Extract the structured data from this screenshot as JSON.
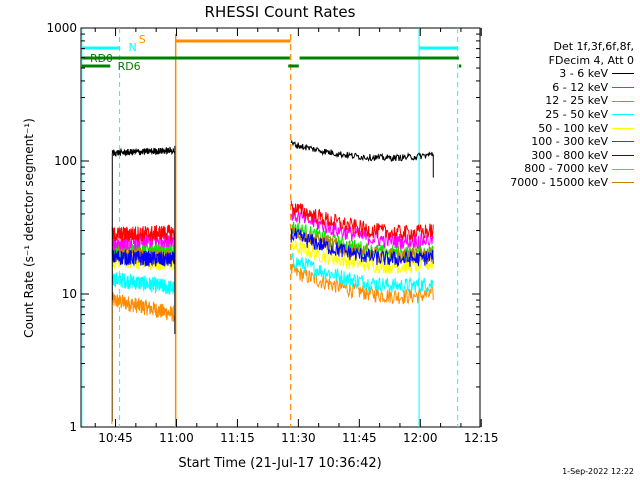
{
  "chart_data": {
    "type": "line",
    "title": "RHESSI Count Rates",
    "xlabel": "Start Time (21-Jul-17 10:36:42)",
    "ylabel": "Count Rate (s⁻¹ detector segment⁻¹)",
    "yscale": "log",
    "ylim": [
      1,
      1000
    ],
    "xlim_minutes": [
      -0.2,
      98.0
    ],
    "xticks": [
      "10:45",
      "11:00",
      "11:15",
      "11:30",
      "11:45",
      "12:00",
      "12:15"
    ],
    "xtick_minutes": [
      8.3,
      23.3,
      38.3,
      53.3,
      68.3,
      83.3,
      98.3
    ],
    "yticks": [
      "1",
      "10",
      "100",
      "1000"
    ],
    "ytick_values": [
      1,
      10,
      100,
      1000
    ],
    "grid": false,
    "legend_title": [
      "Det 1f,3f,6f,8f,",
      "FDecim 4, Att 0"
    ],
    "series": [
      {
        "name": "3 - 6 keV",
        "color": "#000000",
        "segments": [
          [
            7.5,
            22.8,
            115,
            120
          ],
          [
            51.5,
            86.5,
            135,
            112
          ]
        ]
      },
      {
        "name": "6 - 12 keV",
        "color": "#ff00ff",
        "segments": [
          [
            7.5,
            22.8,
            24,
            26
          ],
          [
            51.5,
            86.5,
            40,
            26
          ]
        ]
      },
      {
        "name": "12 - 25 keV",
        "color": "#00ee00",
        "segments": [
          [
            7.5,
            22.8,
            21,
            22
          ],
          [
            51.5,
            86.5,
            32,
            21
          ]
        ]
      },
      {
        "name": "25 - 50 keV",
        "color": "#00ffff",
        "segments": [
          [
            7.5,
            22.8,
            13,
            11
          ],
          [
            51.5,
            86.5,
            18,
            12
          ]
        ]
      },
      {
        "name": "50 - 100 keV",
        "color": "#ffff00",
        "segments": [
          [
            7.5,
            22.8,
            18,
            17
          ],
          [
            51.5,
            86.5,
            23,
            17
          ]
        ]
      },
      {
        "name": "100 - 300 keV",
        "color": "#ff0000",
        "segments": [
          [
            7.5,
            22.8,
            28,
            29
          ],
          [
            51.5,
            86.5,
            45,
            30
          ]
        ]
      },
      {
        "name": "300 - 800 keV",
        "color": "#0000ff",
        "segments": [
          [
            7.5,
            22.8,
            19,
            18
          ],
          [
            51.5,
            86.5,
            28,
            19
          ]
        ]
      },
      {
        "name": "800 - 7000 keV",
        "color": "#ff8c00",
        "segments": [
          [
            7.5,
            22.8,
            9,
            7
          ],
          [
            51.5,
            86.5,
            15,
            10
          ]
        ]
      },
      {
        "name": "7000 - 15000 keV",
        "color": "#c08000",
        "segments": [
          [
            7.5,
            22.8,
            20,
            19
          ],
          [
            51.5,
            86.5,
            30,
            20
          ]
        ]
      }
    ],
    "annotations": {
      "N": {
        "label": "N",
        "color": "#00ffff"
      },
      "S": {
        "label": "S",
        "color": "#ff8c00"
      },
      "RD0": {
        "label": "RD0",
        "color": "#008000"
      },
      "RD6": {
        "label": "RD6",
        "color": "#008000"
      }
    }
  },
  "datestamp": "1-Sep-2022 12:22"
}
